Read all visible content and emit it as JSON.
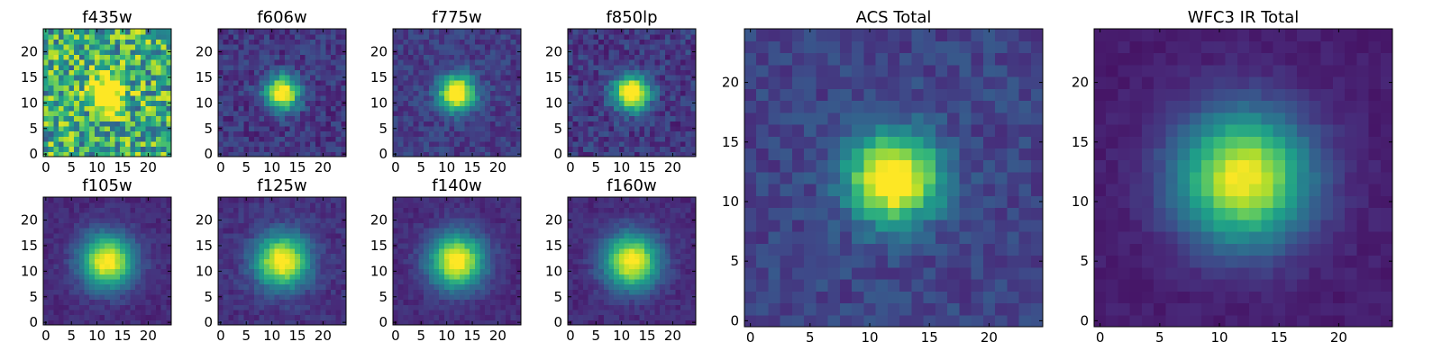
{
  "colormap": {
    "name": "viridis",
    "stops": [
      "#440154",
      "#482878",
      "#3e4a89",
      "#31688e",
      "#26828e",
      "#1f9e89",
      "#35b779",
      "#6ece58",
      "#b5de2b",
      "#fde725"
    ]
  },
  "chart_data": [
    {
      "type": "heatmap",
      "title": "f435w",
      "grid_size": 25,
      "center": [
        12,
        12
      ],
      "peak": 0.9,
      "sigma": 2.2,
      "background": 0.62,
      "noise": 0.34,
      "xticks": [
        "0",
        "5",
        "10",
        "15",
        "20"
      ],
      "yticks": [
        "0",
        "5",
        "10",
        "15",
        "20"
      ],
      "xlim": [
        -0.5,
        24.5
      ],
      "ylim": [
        -0.5,
        24.5
      ]
    },
    {
      "type": "heatmap",
      "title": "f606w",
      "grid_size": 25,
      "center": [
        12,
        12
      ],
      "peak": 0.98,
      "sigma": 2.3,
      "background": 0.16,
      "noise": 0.1,
      "xticks": [
        "0",
        "5",
        "10",
        "15",
        "20"
      ],
      "yticks": [
        "0",
        "5",
        "10",
        "15",
        "20"
      ],
      "xlim": [
        -0.5,
        24.5
      ],
      "ylim": [
        -0.5,
        24.5
      ]
    },
    {
      "type": "heatmap",
      "title": "f775w",
      "grid_size": 25,
      "center": [
        12,
        12
      ],
      "peak": 0.98,
      "sigma": 2.4,
      "background": 0.18,
      "noise": 0.09,
      "xticks": [
        "0",
        "5",
        "10",
        "15",
        "20"
      ],
      "yticks": [
        "0",
        "5",
        "10",
        "15",
        "20"
      ],
      "xlim": [
        -0.5,
        24.5
      ],
      "ylim": [
        -0.5,
        24.5
      ]
    },
    {
      "type": "heatmap",
      "title": "f850lp",
      "grid_size": 25,
      "center": [
        12,
        12
      ],
      "peak": 0.98,
      "sigma": 2.4,
      "background": 0.17,
      "noise": 0.11,
      "xticks": [
        "0",
        "5",
        "10",
        "15",
        "20"
      ],
      "yticks": [
        "0",
        "5",
        "10",
        "15",
        "20"
      ],
      "xlim": [
        -0.5,
        24.5
      ],
      "ylim": [
        -0.5,
        24.5
      ]
    },
    {
      "type": "heatmap",
      "title": "f105w",
      "grid_size": 25,
      "center": [
        12,
        12
      ],
      "peak": 0.92,
      "sigma": 3.6,
      "background": 0.12,
      "noise": 0.05,
      "xticks": [
        "0",
        "5",
        "10",
        "15",
        "20"
      ],
      "yticks": [
        "0",
        "5",
        "10",
        "15",
        "20"
      ],
      "xlim": [
        -0.5,
        24.5
      ],
      "ylim": [
        -0.5,
        24.5
      ]
    },
    {
      "type": "heatmap",
      "title": "f125w",
      "grid_size": 25,
      "center": [
        12,
        12
      ],
      "peak": 0.92,
      "sigma": 3.6,
      "background": 0.14,
      "noise": 0.06,
      "xticks": [
        "0",
        "5",
        "10",
        "15",
        "20"
      ],
      "yticks": [
        "0",
        "5",
        "10",
        "15",
        "20"
      ],
      "xlim": [
        -0.5,
        24.5
      ],
      "ylim": [
        -0.5,
        24.5
      ]
    },
    {
      "type": "heatmap",
      "title": "f140w",
      "grid_size": 25,
      "center": [
        12,
        12
      ],
      "peak": 0.92,
      "sigma": 3.7,
      "background": 0.12,
      "noise": 0.05,
      "xticks": [
        "0",
        "5",
        "10",
        "15",
        "20"
      ],
      "yticks": [
        "0",
        "5",
        "10",
        "15",
        "20"
      ],
      "xlim": [
        -0.5,
        24.5
      ],
      "ylim": [
        -0.5,
        24.5
      ]
    },
    {
      "type": "heatmap",
      "title": "f160w",
      "grid_size": 25,
      "center": [
        12,
        12
      ],
      "peak": 0.92,
      "sigma": 3.7,
      "background": 0.12,
      "noise": 0.05,
      "xticks": [
        "0",
        "5",
        "10",
        "15",
        "20"
      ],
      "yticks": [
        "0",
        "5",
        "10",
        "15",
        "20"
      ],
      "xlim": [
        -0.5,
        24.5
      ],
      "ylim": [
        -0.5,
        24.5
      ]
    },
    {
      "type": "heatmap",
      "title": "ACS Total",
      "grid_size": 25,
      "center": [
        12,
        12
      ],
      "peak": 0.98,
      "sigma": 2.6,
      "background": 0.2,
      "noise": 0.08,
      "xticks": [
        "0",
        "5",
        "10",
        "15",
        "20"
      ],
      "yticks": [
        "0",
        "5",
        "10",
        "15",
        "20"
      ],
      "xlim": [
        -0.5,
        24.5
      ],
      "ylim": [
        -0.5,
        24.5
      ]
    },
    {
      "type": "heatmap",
      "title": "WFC3 IR Total",
      "grid_size": 25,
      "center": [
        12,
        12
      ],
      "peak": 0.92,
      "sigma": 3.8,
      "background": 0.08,
      "noise": 0.03,
      "xticks": [
        "0",
        "5",
        "10",
        "15",
        "20"
      ],
      "yticks": [
        "0",
        "5",
        "10",
        "15",
        "20"
      ],
      "xlim": [
        -0.5,
        24.5
      ],
      "ylim": [
        -0.5,
        24.5
      ]
    }
  ]
}
